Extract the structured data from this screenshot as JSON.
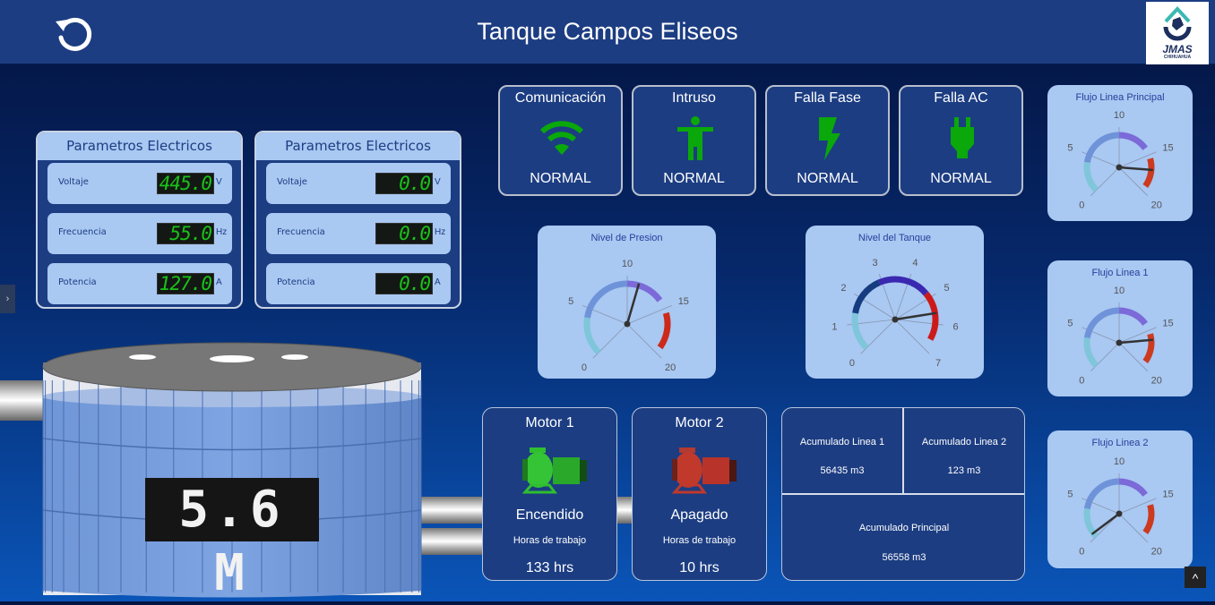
{
  "header": {
    "title": "Tanque Campos Eliseos",
    "logo_text": "JMAS",
    "logo_subtext": "CHIHUAHUA",
    "refresh_icon": "refresh-icon"
  },
  "param_panels": [
    {
      "title": "Parametros Electricos",
      "rows": [
        {
          "label": "Voltaje",
          "value": "445.0",
          "unit": "V"
        },
        {
          "label": "Frecuencia",
          "value": "55.0",
          "unit": "Hz"
        },
        {
          "label": "Potencia",
          "value": "127.0",
          "unit": "A"
        }
      ]
    },
    {
      "title": "Parametros Electricos",
      "rows": [
        {
          "label": "Voltaje",
          "value": "0.0",
          "unit": "V"
        },
        {
          "label": "Frecuencia",
          "value": "0.0",
          "unit": "Hz"
        },
        {
          "label": "Potencia",
          "value": "0.0",
          "unit": "A"
        }
      ]
    }
  ],
  "status_cards": [
    {
      "title": "Comunicación",
      "status": "NORMAL",
      "icon": "wifi-icon"
    },
    {
      "title": "Intruso",
      "status": "NORMAL",
      "icon": "person-icon"
    },
    {
      "title": "Falla Fase",
      "status": "NORMAL",
      "icon": "lightning-icon"
    },
    {
      "title": "Falla AC",
      "status": "NORMAL",
      "icon": "plug-icon"
    }
  ],
  "status_color": "#0aa80a",
  "gauges": {
    "presion": {
      "title": "Nivel de Presion",
      "min": 0,
      "max": 20,
      "ticks": [
        0,
        5,
        10,
        15,
        20
      ],
      "value": 11.2,
      "bands": [
        [
          0,
          4,
          "#7fc6da"
        ],
        [
          4,
          10,
          "#6f93d8"
        ],
        [
          10,
          14,
          "#7b6ad8"
        ],
        [
          15.5,
          19.3,
          "#cc2a1a"
        ]
      ]
    },
    "tanque": {
      "title": "Nivel del Tanque",
      "min": 0,
      "max": 7,
      "ticks": [
        0,
        1,
        2,
        3,
        4,
        5,
        6,
        7
      ],
      "value": 5.6,
      "bands": [
        [
          0,
          1.4,
          "#7fc6da"
        ],
        [
          1.4,
          2.9,
          "#163c80"
        ],
        [
          2.9,
          4.8,
          "#3a28b0"
        ],
        [
          4.8,
          6.6,
          "#cc1a1a"
        ]
      ]
    },
    "flujo_principal": {
      "title": "Flujo Linea Principal",
      "min": 0,
      "max": 20,
      "ticks": [
        0,
        5,
        10,
        15,
        20
      ],
      "value": 17,
      "bands": [
        [
          0,
          4,
          "#7fc6da"
        ],
        [
          4,
          10,
          "#6f93d8"
        ],
        [
          10,
          14,
          "#7b6ad8"
        ],
        [
          15.5,
          19.3,
          "#cc3a20"
        ]
      ]
    },
    "flujo_1": {
      "title": "Flujo Linea 1",
      "min": 0,
      "max": 20,
      "ticks": [
        0,
        5,
        10,
        15,
        20
      ],
      "value": 16.3,
      "bands": [
        [
          0,
          4,
          "#7fc6da"
        ],
        [
          4,
          10,
          "#6f93d8"
        ],
        [
          10,
          14,
          "#7b6ad8"
        ],
        [
          15.5,
          19.3,
          "#cc3a20"
        ]
      ]
    },
    "flujo_2": {
      "title": "Flujo Linea 2",
      "min": 0,
      "max": 20,
      "ticks": [
        0,
        5,
        10,
        15,
        20
      ],
      "value": 0.6,
      "bands": [
        [
          0,
          4,
          "#7fc6da"
        ],
        [
          4,
          10,
          "#6f93d8"
        ],
        [
          10,
          14,
          "#7b6ad8"
        ],
        [
          15.5,
          19.3,
          "#cc3a20"
        ]
      ]
    }
  },
  "tank": {
    "level_display": "5.6 M"
  },
  "motors": [
    {
      "title": "Motor 1",
      "state": "Encendido",
      "hours_label": "Horas de trabajo",
      "hours": "133 hrs",
      "color": "#2fbf2f"
    },
    {
      "title": "Motor 2",
      "state": "Apagado",
      "hours_label": "Horas de trabajo",
      "hours": "10 hrs",
      "color": "#c0392b"
    }
  ],
  "accumulated": {
    "linea1": {
      "label": "Acumulado Linea 1",
      "value": "56435 m3"
    },
    "linea2": {
      "label": "Acumulado Linea 2",
      "value": "123 m3"
    },
    "principal": {
      "label": "Acumulado Principal",
      "value": "56558 m3"
    }
  },
  "controls": {
    "side_tab": "›",
    "scroll_up": "^"
  }
}
